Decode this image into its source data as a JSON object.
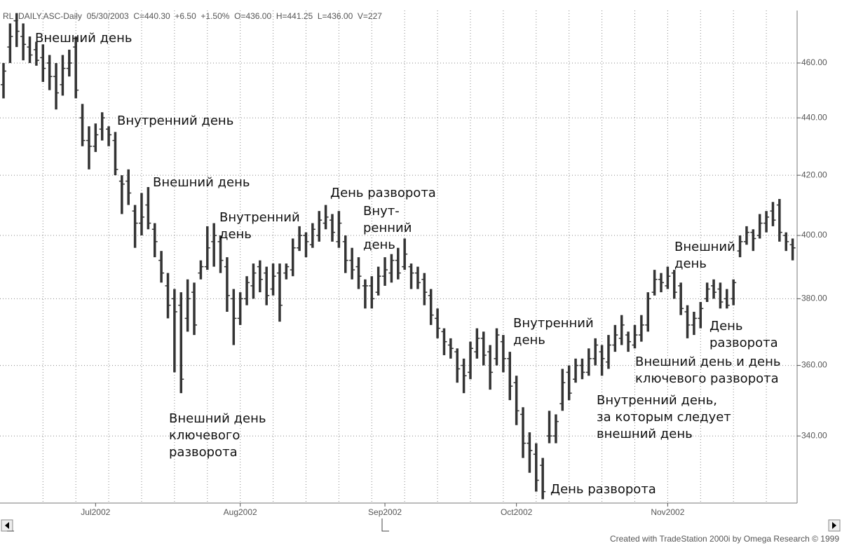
{
  "chart_data": {
    "type": "ohlc",
    "header": "RL_DAILY.ASC-Daily  05/30/2003  C=440.30  +6.50  +1.50%  O=436.00  H=441.25  L=436.00  V=227",
    "footer": "Created with TradeStation 2000i by Omega Research © 1999",
    "log": true,
    "grid": true,
    "color": "#333333",
    "ylim": [
      322,
      480
    ],
    "yticks": [
      {
        "value": 340,
        "label": "340.00"
      },
      {
        "value": 360,
        "label": "360.00"
      },
      {
        "value": 380,
        "label": "380.00"
      },
      {
        "value": 400,
        "label": "400.00"
      },
      {
        "value": 420,
        "label": "420.00"
      },
      {
        "value": 440,
        "label": "440.00"
      },
      {
        "value": 460,
        "label": "460.00"
      }
    ],
    "categories": [
      null,
      null,
      null,
      null,
      null,
      null,
      null,
      null,
      null,
      null,
      null,
      null,
      null,
      null,
      "Jul2002",
      null,
      null,
      null,
      null,
      null,
      null,
      null,
      null,
      null,
      null,
      null,
      null,
      null,
      null,
      null,
      null,
      null,
      null,
      null,
      null,
      null,
      "Aug2002",
      null,
      null,
      null,
      null,
      null,
      null,
      null,
      null,
      null,
      null,
      null,
      null,
      null,
      null,
      null,
      null,
      null,
      null,
      null,
      null,
      null,
      "Sep2002",
      null,
      null,
      null,
      null,
      null,
      null,
      null,
      null,
      null,
      null,
      null,
      null,
      null,
      null,
      null,
      null,
      null,
      null,
      null,
      "Oct2002",
      null,
      null,
      null,
      null,
      null,
      null,
      null,
      null,
      null,
      null,
      null,
      null,
      null,
      null,
      null,
      null,
      null,
      null,
      null,
      null,
      null,
      null,
      "Nov2002",
      null,
      null,
      null,
      null,
      null,
      null,
      null,
      null,
      null,
      null,
      null,
      null,
      null,
      null,
      null,
      null,
      null,
      null,
      null
    ],
    "open": [
      452,
      466,
      476,
      470,
      466,
      465,
      462,
      460,
      455,
      452,
      458,
      466,
      440,
      432,
      430,
      436,
      436,
      432,
      418,
      418,
      408,
      404,
      410,
      402,
      392,
      384,
      380,
      378,
      374,
      382,
      388,
      390,
      398,
      398,
      390,
      380,
      374,
      380,
      384,
      390,
      388,
      383,
      388,
      388,
      389,
      396,
      400,
      397,
      400,
      404,
      405,
      398,
      398,
      392,
      390,
      384,
      384,
      382,
      387,
      388,
      392,
      390,
      390,
      388,
      386,
      381,
      374,
      370,
      366,
      364,
      360,
      358,
      364,
      368,
      364,
      362,
      367,
      362,
      355,
      346,
      338,
      335,
      332,
      340,
      340,
      349,
      358,
      356,
      360,
      358,
      362,
      364,
      361,
      366,
      368,
      369,
      366,
      369,
      372,
      382,
      386,
      384,
      388,
      384,
      376,
      372,
      374,
      380,
      384,
      383,
      380,
      380,
      395,
      398,
      401,
      400,
      404,
      408,
      410,
      400,
      397
    ],
    "high": [
      460,
      475,
      479,
      475,
      470,
      468,
      467,
      463,
      460,
      463,
      465,
      470,
      445,
      437,
      438,
      442,
      437,
      435,
      420,
      422,
      410,
      414,
      416,
      404,
      395,
      388,
      383,
      382,
      386,
      385,
      392,
      403,
      404,
      400,
      393,
      383,
      382,
      387,
      391,
      392,
      390,
      391,
      391,
      391,
      399,
      403,
      401,
      404,
      408,
      410,
      407,
      408,
      400,
      396,
      393,
      386,
      387,
      390,
      393,
      394,
      396,
      399,
      391,
      390,
      388,
      383,
      377,
      371,
      368,
      365,
      362,
      367,
      371,
      370,
      366,
      371,
      369,
      364,
      357,
      348,
      341,
      338,
      334,
      347,
      346,
      359,
      360,
      362,
      362,
      365,
      368,
      366,
      369,
      372,
      375,
      370,
      372,
      375,
      382,
      389,
      388,
      390,
      389,
      385,
      378,
      376,
      379,
      385,
      386,
      385,
      383,
      386,
      400,
      403,
      402,
      407,
      408,
      411,
      412,
      401,
      399
    ],
    "low": [
      447,
      460,
      466,
      461,
      460,
      459,
      453,
      450,
      443,
      448,
      455,
      447,
      430,
      422,
      428,
      432,
      430,
      420,
      407,
      410,
      396,
      400,
      402,
      393,
      385,
      374,
      358,
      352,
      370,
      369,
      386,
      389,
      390,
      388,
      376,
      366,
      372,
      378,
      380,
      382,
      378,
      381,
      373,
      386,
      387,
      395,
      393,
      396,
      398,
      402,
      398,
      396,
      388,
      386,
      383,
      377,
      377,
      381,
      384,
      385,
      386,
      389,
      383,
      383,
      378,
      372,
      368,
      363,
      362,
      355,
      352,
      356,
      362,
      360,
      353,
      360,
      358,
      350,
      343,
      334,
      330,
      325,
      323,
      338,
      338,
      347,
      350,
      355,
      356,
      357,
      360,
      357,
      359,
      364,
      366,
      364,
      365,
      367,
      370,
      381,
      382,
      383,
      380,
      375,
      368,
      369,
      371,
      379,
      380,
      377,
      377,
      378,
      393,
      397,
      395,
      399,
      401,
      403,
      398,
      395,
      392
    ],
    "close": [
      457,
      470,
      472,
      467,
      463,
      461,
      458,
      455,
      449,
      458,
      460,
      450,
      432,
      430,
      434,
      440,
      434,
      422,
      417,
      414,
      404,
      406,
      404,
      398,
      388,
      378,
      376,
      356,
      380,
      372,
      390,
      396,
      400,
      392,
      381,
      374,
      380,
      385,
      388,
      386,
      381,
      387,
      378,
      390,
      396,
      400,
      398,
      402,
      405,
      406,
      401,
      404,
      392,
      389,
      387,
      384,
      380,
      387,
      389,
      392,
      388,
      394,
      388,
      385,
      382,
      375,
      371,
      367,
      365,
      359,
      357,
      365,
      368,
      363,
      358,
      369,
      362,
      354,
      347,
      338,
      336,
      328,
      325,
      340,
      344,
      355,
      352,
      360,
      358,
      362,
      366,
      362,
      366,
      369,
      372,
      367,
      369,
      372,
      380,
      386,
      385,
      387,
      382,
      377,
      372,
      374,
      377,
      383,
      382,
      379,
      378,
      385,
      398,
      401,
      399,
      404,
      406,
      405,
      401,
      398,
      396
    ],
    "annotations": [
      [
        "Внешний день"
      ],
      [
        "Внутренний день"
      ],
      [
        "Внешний день"
      ],
      [
        "Внутренний",
        "день"
      ],
      [
        "День разворота"
      ],
      [
        "Внут-",
        "ренний",
        "день"
      ],
      [
        "Внешний день",
        "ключевого",
        "разворота"
      ],
      [
        "Внутренний",
        "день"
      ],
      [
        "День разворота"
      ],
      [
        "Внешний",
        "день"
      ],
      [
        "День",
        "разворота"
      ],
      [
        "Внешний день и день",
        "ключевого разворота"
      ],
      [
        "Внутренний день,",
        "за которым следует",
        "внешний день"
      ]
    ]
  }
}
